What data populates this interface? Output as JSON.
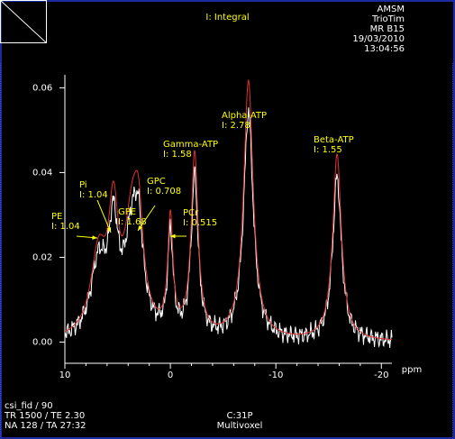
{
  "title": "I: Integral",
  "info_top_right": [
    "AMSM",
    "TrioTim",
    "MR B15",
    "19/03/2010",
    "13:04:56"
  ],
  "info_bottom_left": [
    "csi_fid / 90",
    "TR 1500 / TE 2.30",
    "NA 128 / TA 27:32"
  ],
  "info_bottom_center": [
    "C:31P",
    "Multivoxel"
  ],
  "colors": {
    "fit": "#e03030",
    "spectrum": "#ffffff",
    "labels": "#ffff00",
    "border": "#1a2aa0"
  },
  "chart_data": {
    "type": "line",
    "xlabel": "ppm",
    "ylabel": "",
    "xlim": [
      10,
      -21
    ],
    "ylim": [
      -0.005,
      0.062
    ],
    "x_ticks": [
      10,
      0,
      -10,
      -20
    ],
    "x_tick_labels": [
      "10",
      "0",
      "-10",
      "-20"
    ],
    "y_ticks": [
      0.0,
      0.02,
      0.04,
      0.06
    ],
    "y_tick_labels": [
      "0.00",
      "0.02",
      "0.04",
      "0.06"
    ],
    "peaks": [
      {
        "name": "PE",
        "integral_label": "I: 1.04",
        "ppm": 6.8,
        "height": 0.019,
        "width": 0.9
      },
      {
        "name": "Pi",
        "integral_label": "I: 1.04",
        "ppm": 5.4,
        "height": 0.026,
        "width": 0.55
      },
      {
        "name": "GPE",
        "integral_label": "I: 1.68",
        "ppm": 3.6,
        "height": 0.027,
        "width": 0.9
      },
      {
        "name": "GPC",
        "integral_label": "I: 0.708",
        "ppm": 3.0,
        "height": 0.017,
        "width": 0.5
      },
      {
        "name": "PCr",
        "integral_label": "I: 0.515",
        "ppm": 0.0,
        "height": 0.027,
        "width": 0.3
      },
      {
        "name": "Gamma-ATP",
        "integral_label": "I: 1.58",
        "ppm": -2.3,
        "height": 0.043,
        "width": 0.4
      },
      {
        "name": "Alpha-ATP",
        "integral_label": "I: 2.78",
        "ppm": -7.4,
        "height": 0.061,
        "width": 0.55
      },
      {
        "name": "Beta-ATP",
        "integral_label": "I: 1.55",
        "ppm": -15.8,
        "height": 0.044,
        "width": 0.5
      }
    ]
  }
}
